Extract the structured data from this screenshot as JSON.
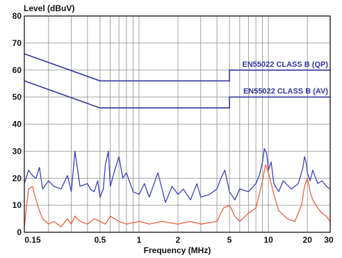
{
  "chart_data": {
    "type": "line",
    "ylabel": "Level (dBuV)",
    "xlabel": "Frequency (MHz)",
    "x_scale": "log",
    "xlim": [
      0.13,
      30
    ],
    "ylim": [
      0,
      80
    ],
    "y_ticks": [
      0,
      10,
      20,
      30,
      40,
      50,
      60,
      70,
      80
    ],
    "x_ticks": [
      0.15,
      0.5,
      1,
      2,
      5,
      10,
      20,
      30
    ],
    "x_tick_labels": [
      "0.15",
      "0.5",
      "1",
      "2",
      "5",
      "10",
      "20",
      "30"
    ],
    "grid": true,
    "limit_lines": [
      {
        "name": "EN55022 CLASS B (QP)",
        "color": "#33349a",
        "points": [
          [
            0.13,
            66
          ],
          [
            0.5,
            56
          ],
          [
            5,
            56
          ],
          [
            5,
            60
          ],
          [
            30,
            60
          ]
        ]
      },
      {
        "name": "EN55022 CLASS B (AV)",
        "color": "#33349a",
        "points": [
          [
            0.13,
            56
          ],
          [
            0.5,
            46
          ],
          [
            5,
            46
          ],
          [
            5,
            50
          ],
          [
            30,
            50
          ]
        ]
      }
    ],
    "series": [
      {
        "color": "#3b3fb8",
        "x": [
          0.13,
          0.14,
          0.15,
          0.16,
          0.17,
          0.18,
          0.2,
          0.22,
          0.25,
          0.28,
          0.3,
          0.32,
          0.35,
          0.4,
          0.42,
          0.45,
          0.48,
          0.5,
          0.53,
          0.55,
          0.58,
          0.6,
          0.65,
          0.7,
          0.75,
          0.8,
          0.9,
          1.0,
          1.1,
          1.2,
          1.4,
          1.6,
          1.8,
          2.0,
          2.2,
          2.5,
          2.8,
          3.0,
          3.5,
          4.0,
          4.3,
          4.6,
          5.0,
          5.5,
          6.0,
          7.0,
          8.0,
          8.5,
          9.0,
          9.3,
          9.7,
          10.0,
          10.5,
          11.0,
          12.0,
          13.0,
          15.0,
          17.0,
          18.5,
          19.0,
          19.5,
          20.0,
          21.0,
          22.0,
          24.0,
          26.0,
          28.0,
          30.0
        ],
        "y": [
          18,
          23,
          21,
          20,
          24,
          16,
          19,
          17,
          16,
          21,
          15,
          30,
          17,
          18,
          16,
          15,
          19,
          13,
          16,
          25,
          30,
          17,
          23,
          28,
          20,
          22,
          15,
          14,
          18,
          13,
          22,
          11,
          17,
          14,
          16,
          12,
          18,
          13,
          14,
          16,
          20,
          23,
          15,
          12,
          16,
          15,
          18,
          21,
          26,
          31,
          29,
          23,
          26,
          18,
          15,
          19,
          16,
          18,
          24,
          28,
          26,
          22,
          19,
          23,
          18,
          19,
          17,
          16
        ]
      },
      {
        "color": "#e8603c",
        "x": [
          0.13,
          0.14,
          0.15,
          0.16,
          0.17,
          0.18,
          0.2,
          0.22,
          0.25,
          0.28,
          0.3,
          0.32,
          0.35,
          0.4,
          0.45,
          0.5,
          0.55,
          0.6,
          0.7,
          0.8,
          1.0,
          1.2,
          1.5,
          2.0,
          2.5,
          3.0,
          4.0,
          4.5,
          5.0,
          5.5,
          6.0,
          7.0,
          8.0,
          8.5,
          9.0,
          9.5,
          10.0,
          10.5,
          11.0,
          12.0,
          14.0,
          16.0,
          18.0,
          19.0,
          20.0,
          21.0,
          22.0,
          24.0,
          26.0,
          28.0,
          30.0
        ],
        "y": [
          2,
          16,
          17,
          12,
          8,
          5,
          3,
          4,
          2,
          5,
          3,
          6,
          4,
          3,
          5,
          4,
          3,
          6,
          4,
          3,
          4,
          3,
          4,
          3,
          4,
          3,
          4,
          9,
          10,
          6,
          4,
          7,
          9,
          14,
          19,
          25,
          22,
          18,
          14,
          8,
          5,
          4,
          10,
          17,
          20,
          15,
          12,
          9,
          7,
          6,
          4
        ]
      }
    ]
  }
}
